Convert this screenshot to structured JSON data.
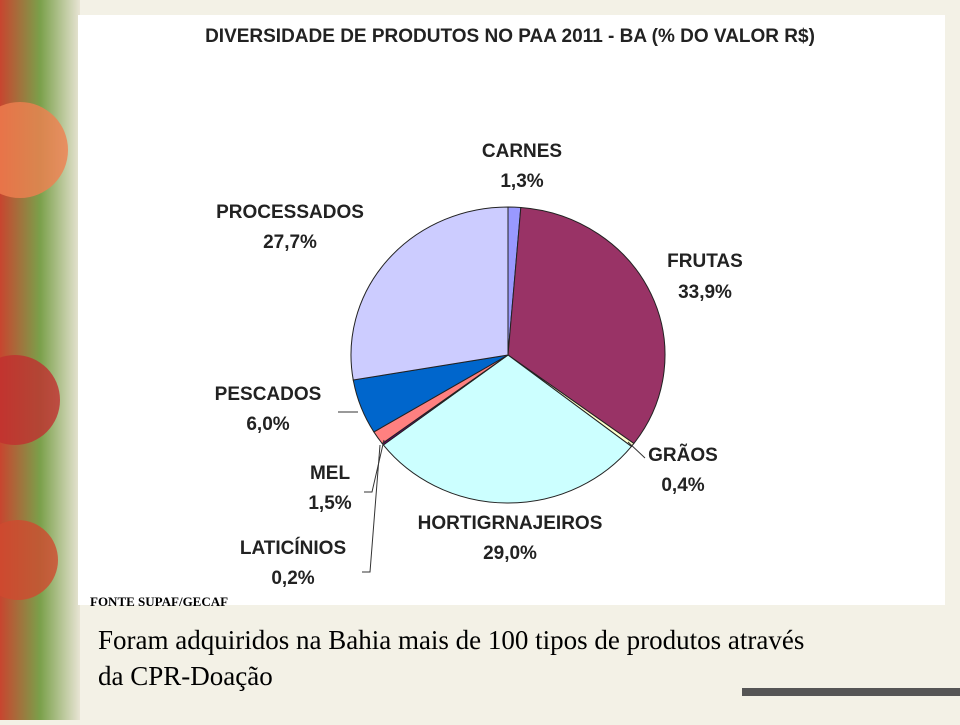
{
  "chart_data": {
    "type": "pie",
    "title": "DIVERSIDADE DE PRODUTOS NO PAA 2011 - BA (% DO VALOR R$)",
    "categories": [
      "CARNES",
      "FRUTAS",
      "GRÃOS",
      "HORTIGRNAJEIROS",
      "LATICÍNIOS",
      "MEL",
      "PESCADOS",
      "PROCESSADOS"
    ],
    "values": [
      1.3,
      33.9,
      0.4,
      29.0,
      0.2,
      1.5,
      6.0,
      27.7
    ],
    "value_labels": [
      "1,3%",
      "33,9%",
      "0,4%",
      "29,0%",
      "0,2%",
      "1,5%",
      "6,0%",
      "27,7%"
    ],
    "colors": [
      "#9999ff",
      "#993366",
      "#ffffcc",
      "#ccffff",
      "#660066",
      "#ff8080",
      "#0066cc",
      "#ccccff"
    ],
    "source": "FONTE SUPAF/GECAF"
  },
  "caption": [
    "Foram adquiridos na Bahia mais de 100 tipos de produtos através",
    "da CPR-Doação"
  ]
}
